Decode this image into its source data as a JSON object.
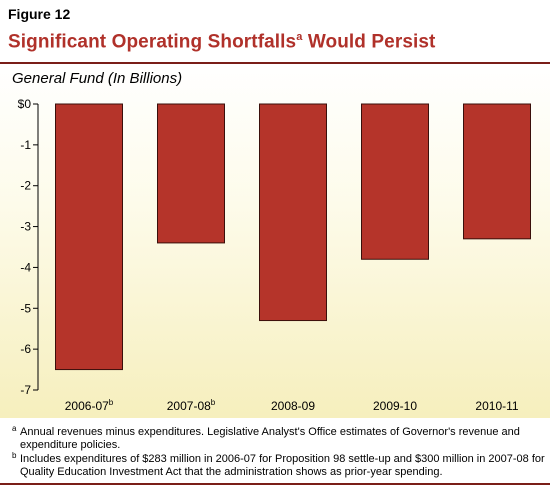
{
  "figure_label": "Figure 12",
  "title": {
    "text": "Significant Operating Shortfalls",
    "superscript": "a",
    "text_after": " Would Persist"
  },
  "chart_data": {
    "type": "bar",
    "title": "Significant Operating Shortfalls Would Persist",
    "subtitle": "General Fund (In Billions)",
    "categories": [
      "2006-07",
      "2007-08",
      "2008-09",
      "2009-10",
      "2010-11"
    ],
    "category_superscripts": [
      "b",
      "b",
      "",
      "",
      ""
    ],
    "values": [
      -6.5,
      -3.4,
      -5.3,
      -3.8,
      -3.3
    ],
    "ylim": [
      -7,
      0
    ],
    "yticks": [
      0,
      -1,
      -2,
      -3,
      -4,
      -5,
      -6,
      -7
    ],
    "ytick_labels": [
      "$0",
      "-1",
      "-2",
      "-3",
      "-4",
      "-5",
      "-6",
      "-7"
    ],
    "xlabel": "",
    "ylabel": "",
    "grid": false,
    "bar_color": "#b5342a"
  },
  "footnotes": [
    {
      "mark": "a",
      "text": "Annual revenues minus expenditures. Legislative Analyst's Office estimates of Governor's revenue and expenditure policies."
    },
    {
      "mark": "b",
      "text": "Includes expenditures of $283 million in 2006-07 for Proposition 98 settle-up and $300 million in 2007-08 for Quality Education Investment Act that the administration shows as prior-year spending."
    }
  ],
  "colors": {
    "title": "#b0312a",
    "rule": "#7a1e18",
    "bar": "#b5342a",
    "bar_edge": "#3a0f0b"
  }
}
